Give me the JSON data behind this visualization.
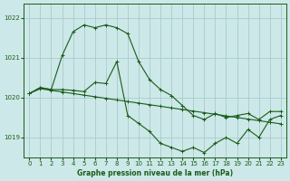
{
  "title": "Graphe pression niveau de la mer (hPa)",
  "bg_color": "#cce8e8",
  "grid_color": "#aacccc",
  "line_color": "#1a5c1a",
  "marker_color": "#1a5c1a",
  "xlim": [
    -0.5,
    23.5
  ],
  "ylim": [
    1018.5,
    1022.35
  ],
  "yticks": [
    1019,
    1020,
    1021,
    1022
  ],
  "xticks": [
    0,
    1,
    2,
    3,
    4,
    5,
    6,
    7,
    8,
    9,
    10,
    11,
    12,
    13,
    14,
    15,
    16,
    17,
    18,
    19,
    20,
    21,
    22,
    23
  ],
  "series1_x": [
    0,
    1,
    2,
    3,
    4,
    5,
    6,
    7,
    8,
    9,
    10,
    11,
    12,
    13,
    14,
    15,
    16,
    17,
    18,
    19,
    20,
    21,
    22,
    23
  ],
  "series1_y": [
    1020.1,
    1020.25,
    1020.2,
    1021.05,
    1021.65,
    1021.82,
    1021.75,
    1021.82,
    1021.75,
    1021.6,
    1020.9,
    1020.45,
    1020.2,
    1020.05,
    1019.8,
    1019.55,
    1019.45,
    1019.6,
    1019.5,
    1019.55,
    1019.6,
    1019.45,
    1019.65,
    1019.65
  ],
  "series2_x": [
    0,
    1,
    2,
    3,
    4,
    5,
    6,
    7,
    8,
    9,
    10,
    11,
    12,
    13,
    14,
    15,
    16,
    17,
    18,
    19,
    20,
    21,
    22,
    23
  ],
  "series2_y": [
    1020.1,
    1020.22,
    1020.18,
    1020.14,
    1020.1,
    1020.06,
    1020.02,
    1019.98,
    1019.94,
    1019.9,
    1019.86,
    1019.82,
    1019.78,
    1019.74,
    1019.7,
    1019.66,
    1019.62,
    1019.58,
    1019.54,
    1019.5,
    1019.46,
    1019.42,
    1019.38,
    1019.34
  ],
  "series3_x": [
    0,
    1,
    2,
    3,
    4,
    5,
    6,
    7,
    8,
    9,
    10,
    11,
    12,
    13,
    14,
    15,
    16,
    17,
    18,
    19,
    20,
    21,
    22,
    23
  ],
  "series3_y": [
    1020.1,
    1020.25,
    1020.2,
    1020.2,
    1020.18,
    1020.15,
    1020.38,
    1020.35,
    1020.9,
    1019.55,
    1019.35,
    1019.15,
    1018.85,
    1018.75,
    1018.65,
    1018.75,
    1018.62,
    1018.85,
    1019.0,
    1018.85,
    1019.2,
    1019.0,
    1019.45,
    1019.55
  ]
}
